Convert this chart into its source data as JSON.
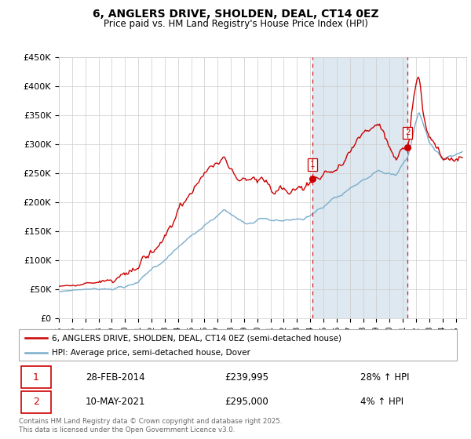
{
  "title": "6, ANGLERS DRIVE, SHOLDEN, DEAL, CT14 0EZ",
  "subtitle": "Price paid vs. HM Land Registry's House Price Index (HPI)",
  "ylabel_ticks": [
    "£0",
    "£50K",
    "£100K",
    "£150K",
    "£200K",
    "£250K",
    "£300K",
    "£350K",
    "£400K",
    "£450K"
  ],
  "ylim": [
    0,
    450000
  ],
  "xlim_start": 1995.0,
  "xlim_end": 2025.8,
  "transaction1": {
    "date": "28-FEB-2014",
    "price": 239995,
    "label": "1",
    "year": 2014.17,
    "hpi_pct": "28% ↑ HPI"
  },
  "transaction2": {
    "date": "10-MAY-2021",
    "price": 295000,
    "label": "2",
    "year": 2021.37,
    "hpi_pct": "4% ↑ HPI"
  },
  "legend_line1": "6, ANGLERS DRIVE, SHOLDEN, DEAL, CT14 0EZ (semi-detached house)",
  "legend_line2": "HPI: Average price, semi-detached house, Dover",
  "footnote": "Contains HM Land Registry data © Crown copyright and database right 2025.\nThis data is licensed under the Open Government Licence v3.0.",
  "line_color_red": "#cc0000",
  "line_color_blue": "#7aadcc",
  "vline_color": "#cc0000",
  "span_color": "#dde8f0",
  "background_color": "#ffffff",
  "grid_color": "#cccccc"
}
